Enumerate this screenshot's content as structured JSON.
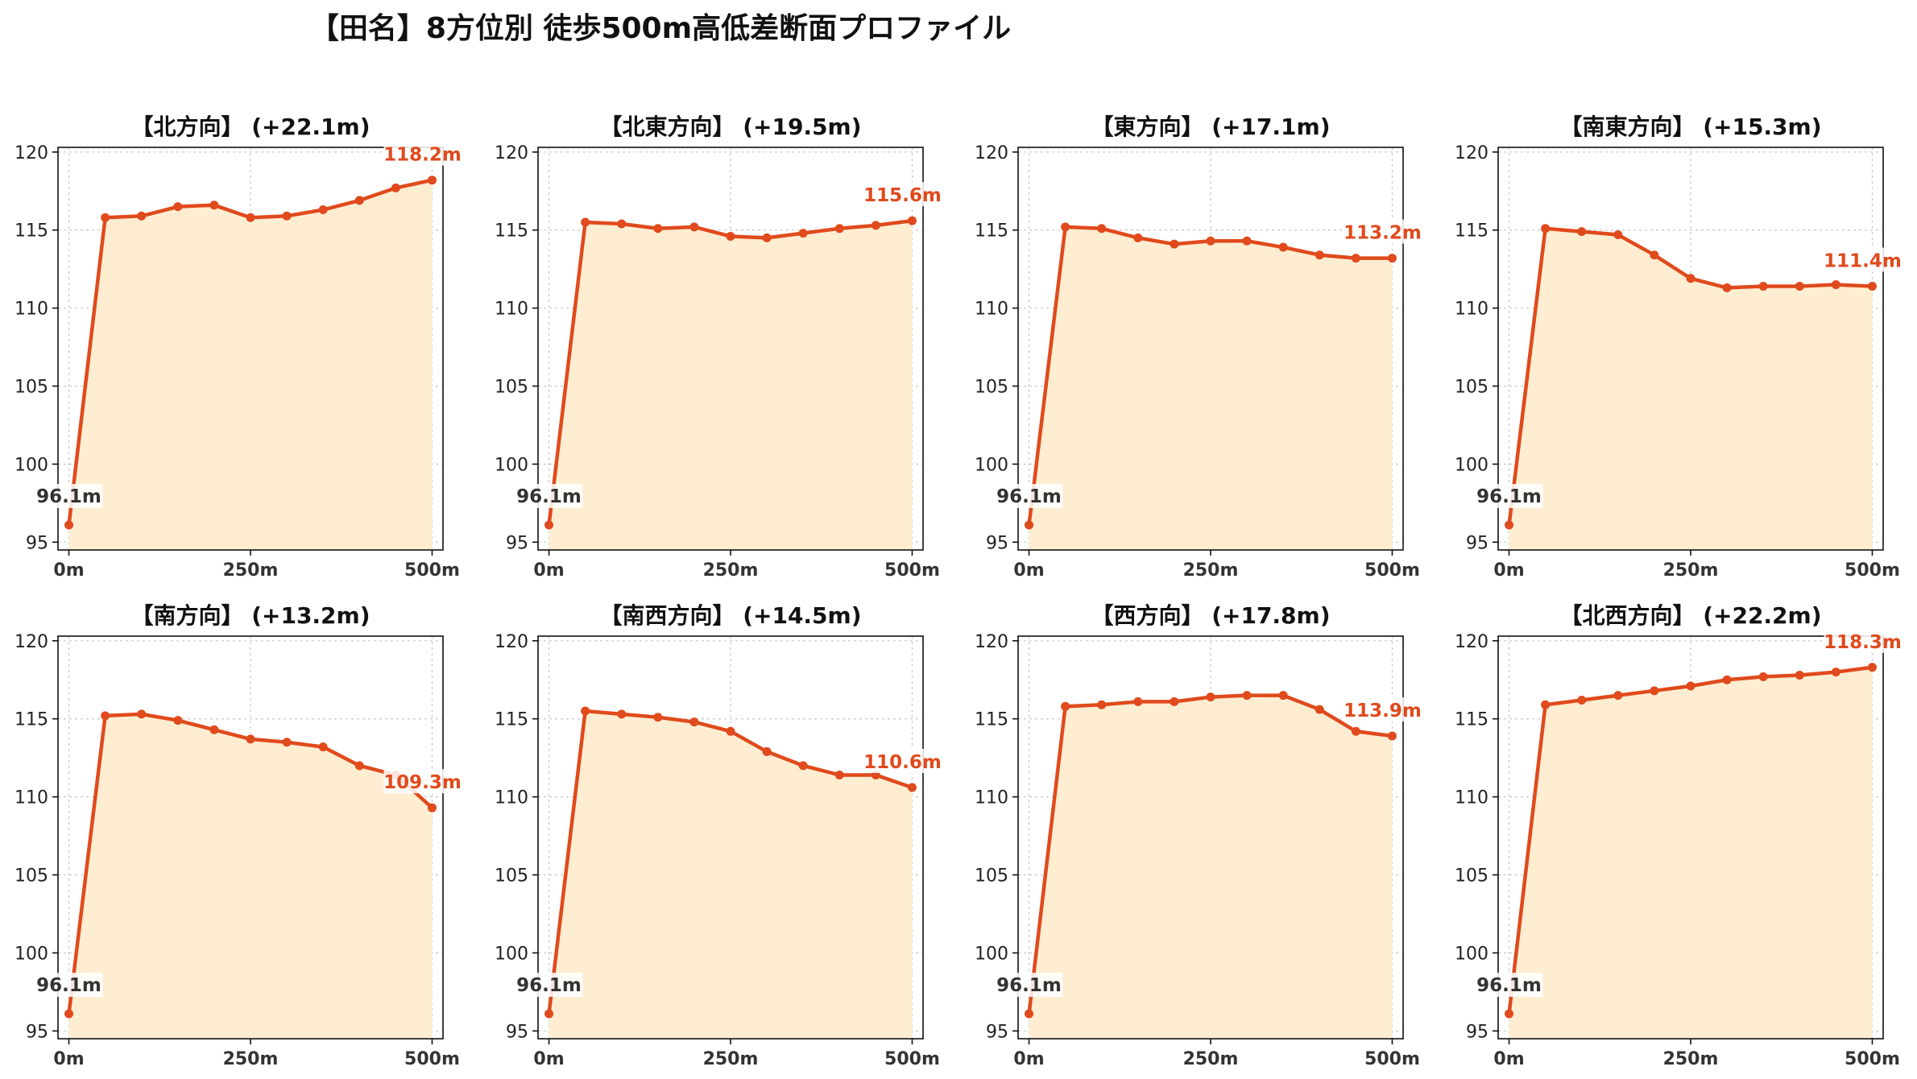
{
  "figure": {
    "title": "【田名】8方位別 徒歩500m高低差断面プロファイル"
  },
  "colors": {
    "line": "#e04a1c",
    "fill": "#ffedd2",
    "start_label": "#333333",
    "grid": "#c8c8c8"
  },
  "chart_data": [
    {
      "type": "area",
      "title": "【北方向】 (+22.1m)",
      "x": [
        0,
        50,
        100,
        150,
        200,
        250,
        300,
        350,
        400,
        450,
        500
      ],
      "y": [
        96.1,
        115.8,
        115.9,
        116.5,
        116.6,
        115.8,
        115.9,
        116.3,
        116.9,
        117.7,
        118.2
      ],
      "xticks": [
        "0m",
        "250m",
        "500m"
      ],
      "yticks": [
        95,
        100,
        105,
        110,
        115,
        120
      ],
      "ylim": [
        94.5,
        120.3
      ],
      "start_label": "96.1m",
      "end_label": "118.2m",
      "grid": true
    },
    {
      "type": "area",
      "title": "【北東方向】 (+19.5m)",
      "x": [
        0,
        50,
        100,
        150,
        200,
        250,
        300,
        350,
        400,
        450,
        500
      ],
      "y": [
        96.1,
        115.5,
        115.4,
        115.1,
        115.2,
        114.6,
        114.5,
        114.8,
        115.1,
        115.3,
        115.6
      ],
      "xticks": [
        "0m",
        "250m",
        "500m"
      ],
      "yticks": [
        95,
        100,
        105,
        110,
        115,
        120
      ],
      "ylim": [
        94.5,
        120.3
      ],
      "start_label": "96.1m",
      "end_label": "115.6m",
      "grid": true
    },
    {
      "type": "area",
      "title": "【東方向】 (+17.1m)",
      "x": [
        0,
        50,
        100,
        150,
        200,
        250,
        300,
        350,
        400,
        450,
        500
      ],
      "y": [
        96.1,
        115.2,
        115.1,
        114.5,
        114.1,
        114.3,
        114.3,
        113.9,
        113.4,
        113.2,
        113.2
      ],
      "xticks": [
        "0m",
        "250m",
        "500m"
      ],
      "yticks": [
        95,
        100,
        105,
        110,
        115,
        120
      ],
      "ylim": [
        94.5,
        120.3
      ],
      "start_label": "96.1m",
      "end_label": "113.2m",
      "grid": true
    },
    {
      "type": "area",
      "title": "【南東方向】 (+15.3m)",
      "x": [
        0,
        50,
        100,
        150,
        200,
        250,
        300,
        350,
        400,
        450,
        500
      ],
      "y": [
        96.1,
        115.1,
        114.9,
        114.7,
        113.4,
        111.9,
        111.3,
        111.4,
        111.4,
        111.5,
        111.4
      ],
      "xticks": [
        "0m",
        "250m",
        "500m"
      ],
      "yticks": [
        95,
        100,
        105,
        110,
        115,
        120
      ],
      "ylim": [
        94.5,
        120.3
      ],
      "start_label": "96.1m",
      "end_label": "111.4m",
      "grid": true
    },
    {
      "type": "area",
      "title": "【南方向】 (+13.2m)",
      "x": [
        0,
        50,
        100,
        150,
        200,
        250,
        300,
        350,
        400,
        450,
        500
      ],
      "y": [
        96.1,
        115.2,
        115.3,
        114.9,
        114.3,
        113.7,
        113.5,
        113.2,
        112.0,
        111.4,
        109.3
      ],
      "xticks": [
        "0m",
        "250m",
        "500m"
      ],
      "yticks": [
        95,
        100,
        105,
        110,
        115,
        120
      ],
      "ylim": [
        94.5,
        120.3
      ],
      "start_label": "96.1m",
      "end_label": "109.3m",
      "grid": true
    },
    {
      "type": "area",
      "title": "【南西方向】 (+14.5m)",
      "x": [
        0,
        50,
        100,
        150,
        200,
        250,
        300,
        350,
        400,
        450,
        500
      ],
      "y": [
        96.1,
        115.5,
        115.3,
        115.1,
        114.8,
        114.2,
        112.9,
        112.0,
        111.4,
        111.4,
        110.6
      ],
      "xticks": [
        "0m",
        "250m",
        "500m"
      ],
      "yticks": [
        95,
        100,
        105,
        110,
        115,
        120
      ],
      "ylim": [
        94.5,
        120.3
      ],
      "start_label": "96.1m",
      "end_label": "110.6m",
      "grid": true
    },
    {
      "type": "area",
      "title": "【西方向】 (+17.8m)",
      "x": [
        0,
        50,
        100,
        150,
        200,
        250,
        300,
        350,
        400,
        450,
        500
      ],
      "y": [
        96.1,
        115.8,
        115.9,
        116.1,
        116.1,
        116.4,
        116.5,
        116.5,
        115.6,
        114.2,
        113.9
      ],
      "xticks": [
        "0m",
        "250m",
        "500m"
      ],
      "yticks": [
        95,
        100,
        105,
        110,
        115,
        120
      ],
      "ylim": [
        94.5,
        120.3
      ],
      "start_label": "96.1m",
      "end_label": "113.9m",
      "grid": true
    },
    {
      "type": "area",
      "title": "【北西方向】 (+22.2m)",
      "x": [
        0,
        50,
        100,
        150,
        200,
        250,
        300,
        350,
        400,
        450,
        500
      ],
      "y": [
        96.1,
        115.9,
        116.2,
        116.5,
        116.8,
        117.1,
        117.5,
        117.7,
        117.8,
        118.0,
        118.3
      ],
      "xticks": [
        "0m",
        "250m",
        "500m"
      ],
      "yticks": [
        95,
        100,
        105,
        110,
        115,
        120
      ],
      "ylim": [
        94.5,
        120.3
      ],
      "start_label": "96.1m",
      "end_label": "118.3m",
      "grid": true
    }
  ]
}
